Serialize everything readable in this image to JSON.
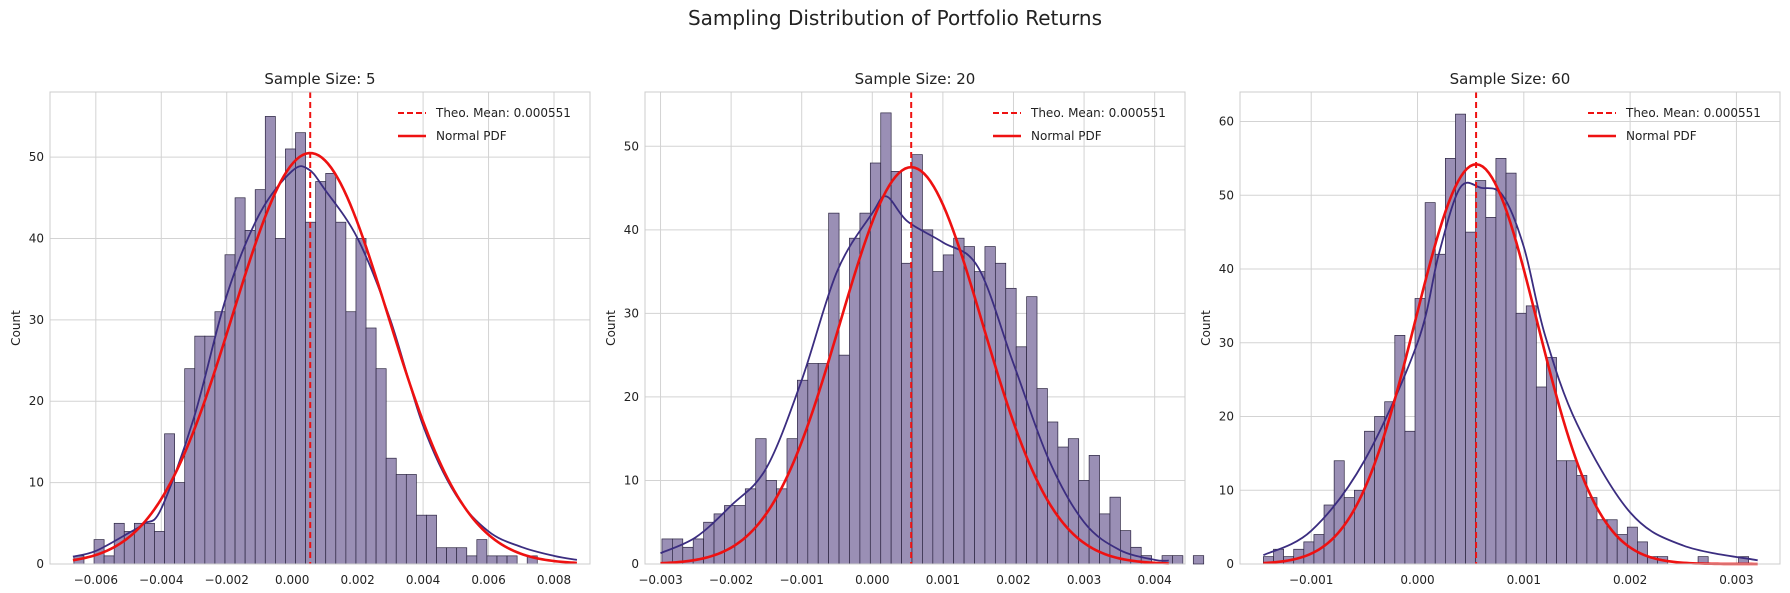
{
  "figure": {
    "title": "Sampling Distribution of Portfolio Returns"
  },
  "colors": {
    "bar_fill": "#9a8fb5",
    "bar_edge": "#2b2440",
    "kde": "#3b2d80",
    "normal": "#ee1111",
    "mean": "#ee1111",
    "grid": "#d3d3d3",
    "frame": "#cccccc"
  },
  "chart_data": [
    {
      "type": "histogram",
      "title": "Sample Size: 5",
      "ylabel": "Count",
      "xlim": [
        -0.0074,
        0.0091
      ],
      "ylim": [
        0,
        58
      ],
      "xticks": [
        -0.006,
        -0.004,
        -0.002,
        0.0,
        0.002,
        0.004,
        0.006,
        0.008
      ],
      "xtick_labels": [
        "−0.006",
        "−0.004",
        "−0.002",
        "0.000",
        "0.002",
        "0.004",
        "0.006",
        "0.008"
      ],
      "yticks": [
        0,
        10,
        20,
        30,
        40,
        50
      ],
      "bins": {
        "start": -0.00667,
        "width": 0.0003078
      },
      "counts": [
        1,
        0,
        3,
        1,
        5,
        4,
        5,
        5,
        4,
        16,
        10,
        24,
        28,
        28,
        31,
        38,
        45,
        41,
        46,
        55,
        40,
        51,
        53,
        42,
        47,
        48,
        42,
        31,
        40,
        29,
        24,
        13,
        11,
        11,
        6,
        6,
        2,
        2,
        2,
        1,
        3,
        1,
        1,
        1,
        0,
        1
      ],
      "mean": 0.000551,
      "normal": {
        "mu": 0.000551,
        "peak": 50.5,
        "sigma": 0.00237
      },
      "kde": [
        [
          -0.0067,
          0.9
        ],
        [
          -0.006,
          1.6
        ],
        [
          -0.005,
          3.8
        ],
        [
          -0.0045,
          5
        ],
        [
          -0.004,
          6.8
        ],
        [
          -0.003,
          18
        ],
        [
          -0.002,
          33
        ],
        [
          -0.001,
          43
        ],
        [
          0.0,
          48.3
        ],
        [
          0.0005,
          48.5
        ],
        [
          0.001,
          46
        ],
        [
          0.002,
          40
        ],
        [
          0.003,
          30
        ],
        [
          0.004,
          17
        ],
        [
          0.005,
          8.5
        ],
        [
          0.006,
          4
        ],
        [
          0.007,
          2.1
        ],
        [
          0.008,
          1
        ],
        [
          0.0087,
          0.5
        ]
      ],
      "legend": {
        "position": "top-right",
        "entries": [
          "Theo. Mean: 0.000551",
          "Normal PDF"
        ]
      }
    },
    {
      "type": "histogram",
      "title": "Sample Size: 20",
      "ylabel": "Count",
      "xlim": [
        -0.00322,
        0.00443
      ],
      "ylim": [
        0,
        56.5
      ],
      "xticks": [
        -0.003,
        -0.002,
        -0.001,
        0.0,
        0.001,
        0.002,
        0.003,
        0.004
      ],
      "xtick_labels": [
        "−0.003",
        "−0.002",
        "−0.001",
        "0.000",
        "0.001",
        "0.002",
        "0.003",
        "0.004"
      ],
      "yticks": [
        0,
        10,
        20,
        30,
        40,
        50
      ],
      "bins": {
        "start": -0.00298,
        "width": 0.0001476
      },
      "counts": [
        3,
        3,
        2,
        3,
        5,
        6,
        7,
        7,
        9,
        15,
        10,
        9,
        15,
        22,
        24,
        24,
        42,
        25,
        39,
        42,
        48,
        54,
        47,
        36,
        49,
        40,
        35,
        37,
        39,
        38,
        35,
        38,
        36,
        33,
        26,
        32,
        21,
        17,
        14,
        15,
        10,
        13,
        6,
        8,
        4,
        2,
        1,
        0,
        1,
        1,
        0,
        1
      ],
      "mean": 0.000551,
      "normal": {
        "mu": 0.000551,
        "peak": 47.5,
        "sigma": 0.00101
      },
      "kde": [
        [
          -0.003,
          1.3
        ],
        [
          -0.0025,
          3.2
        ],
        [
          -0.002,
          7
        ],
        [
          -0.0015,
          11.5
        ],
        [
          -0.001,
          22
        ],
        [
          -0.0005,
          35
        ],
        [
          0.0,
          42
        ],
        [
          0.0002,
          44
        ],
        [
          0.0005,
          41
        ],
        [
          0.001,
          38.5
        ],
        [
          0.0015,
          35.5
        ],
        [
          0.002,
          24
        ],
        [
          0.0025,
          12.5
        ],
        [
          0.003,
          5
        ],
        [
          0.0035,
          1.7
        ],
        [
          0.004,
          0.5
        ],
        [
          0.0042,
          0.4
        ]
      ],
      "legend": {
        "position": "top-right",
        "entries": [
          "Theo. Mean: 0.000551",
          "Normal PDF"
        ]
      }
    },
    {
      "type": "histogram",
      "title": "Sample Size: 60",
      "ylabel": "Count",
      "xlim": [
        -0.00167,
        0.00341
      ],
      "ylim": [
        0,
        64
      ],
      "xticks": [
        -0.001,
        0.0,
        0.001,
        0.002,
        0.003
      ],
      "xtick_labels": [
        "−0.001",
        "0.000",
        "0.001",
        "0.002",
        "0.003"
      ],
      "yticks": [
        0,
        10,
        20,
        30,
        40,
        50,
        60
      ],
      "bins": {
        "start": -0.00145,
        "width": 9.51e-05
      },
      "counts": [
        1,
        2,
        1,
        2,
        3,
        4,
        8,
        14,
        9,
        10,
        18,
        20,
        22,
        31,
        18,
        36,
        49,
        42,
        55,
        61,
        45,
        52,
        47,
        55,
        53,
        34,
        35,
        24,
        28,
        14,
        14,
        12,
        9,
        6,
        6,
        4,
        5,
        3,
        1,
        1,
        0,
        0,
        0,
        1,
        0,
        0,
        0,
        1
      ],
      "mean": 0.000551,
      "normal": {
        "mu": 0.000551,
        "peak": 54.2,
        "sigma": 0.000574
      },
      "kde": [
        [
          -0.00145,
          1.2
        ],
        [
          -0.001,
          4.5
        ],
        [
          -0.0005,
          14
        ],
        [
          0.0,
          30
        ],
        [
          0.0002,
          42
        ],
        [
          0.0004,
          51
        ],
        [
          0.0006,
          51
        ],
        [
          0.0008,
          50
        ],
        [
          0.001,
          43
        ],
        [
          0.0012,
          31
        ],
        [
          0.0015,
          19
        ],
        [
          0.002,
          7
        ],
        [
          0.0025,
          2.5
        ],
        [
          0.0032,
          0.5
        ]
      ],
      "legend": {
        "position": "top-right",
        "entries": [
          "Theo. Mean: 0.000551",
          "Normal PDF"
        ]
      }
    }
  ]
}
